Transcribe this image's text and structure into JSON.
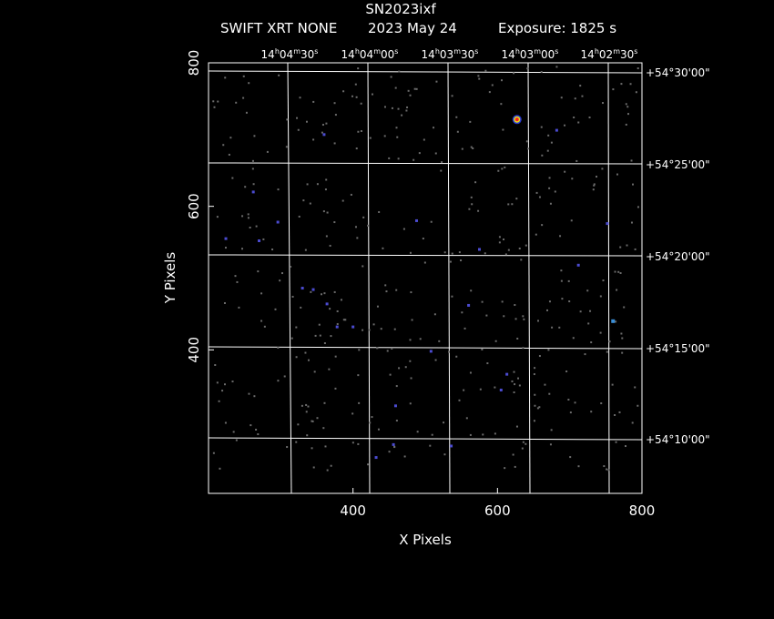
{
  "chart_data": {
    "type": "scatter",
    "title": "SN2023ixf",
    "subtitle": {
      "instrument": "SWIFT XRT NONE",
      "date": "2023 May 24",
      "exposure": "Exposure: 1825 s"
    },
    "xlabel": "X Pixels",
    "ylabel": "Y Pixels",
    "xlim": [
      200,
      800
    ],
    "ylim": [
      200,
      800
    ],
    "x_ticks": [
      "400",
      "600",
      "800"
    ],
    "y_ticks": [
      "400",
      "600",
      "800"
    ],
    "ra_ticks": [
      {
        "h": "14",
        "m": "04",
        "s": "30"
      },
      {
        "h": "14",
        "m": "04",
        "s": "00"
      },
      {
        "h": "14",
        "m": "03",
        "s": "30"
      },
      {
        "h": "14",
        "m": "03",
        "s": "00"
      },
      {
        "h": "14",
        "m": "02",
        "s": "30"
      }
    ],
    "dec_ticks": [
      "+54°30'00\"",
      "+54°25'00\"",
      "+54°20'00\"",
      "+54°15'00\"",
      "+54°10'00\""
    ],
    "grid": true,
    "background": "#000000",
    "colors": {
      "faint": "#6b6b6b",
      "dim": "#4b4bd0",
      "medium": "#3a8fd8",
      "bright": "#ff2020",
      "grid": "#ffffff"
    },
    "sources": [
      {
        "x": 627,
        "y": 721,
        "level": "bright"
      },
      {
        "x": 760,
        "y": 440,
        "level": "medium"
      },
      {
        "x": 712,
        "y": 518,
        "level": "dim"
      },
      {
        "x": 270,
        "y": 552,
        "level": "dim"
      },
      {
        "x": 432,
        "y": 250,
        "level": "dim"
      },
      {
        "x": 456,
        "y": 268,
        "level": "dim"
      },
      {
        "x": 364,
        "y": 464,
        "level": "dim"
      },
      {
        "x": 345,
        "y": 484,
        "level": "dim"
      },
      {
        "x": 378,
        "y": 432,
        "level": "dim"
      },
      {
        "x": 752,
        "y": 576,
        "level": "dim"
      },
      {
        "x": 682,
        "y": 706,
        "level": "dim"
      },
      {
        "x": 605,
        "y": 344,
        "level": "dim"
      },
      {
        "x": 262,
        "y": 620,
        "level": "dim"
      },
      {
        "x": 330,
        "y": 486,
        "level": "dim"
      },
      {
        "x": 459,
        "y": 322,
        "level": "dim"
      },
      {
        "x": 560,
        "y": 462,
        "level": "dim"
      },
      {
        "x": 400,
        "y": 432,
        "level": "dim"
      },
      {
        "x": 508,
        "y": 398,
        "level": "dim"
      },
      {
        "x": 536,
        "y": 266,
        "level": "dim"
      },
      {
        "x": 613,
        "y": 366,
        "level": "dim"
      },
      {
        "x": 575,
        "y": 540,
        "level": "dim"
      },
      {
        "x": 488,
        "y": 580,
        "level": "dim"
      },
      {
        "x": 360,
        "y": 700,
        "level": "dim"
      },
      {
        "x": 296,
        "y": 578,
        "level": "dim"
      },
      {
        "x": 224,
        "y": 555,
        "level": "dim"
      }
    ]
  }
}
